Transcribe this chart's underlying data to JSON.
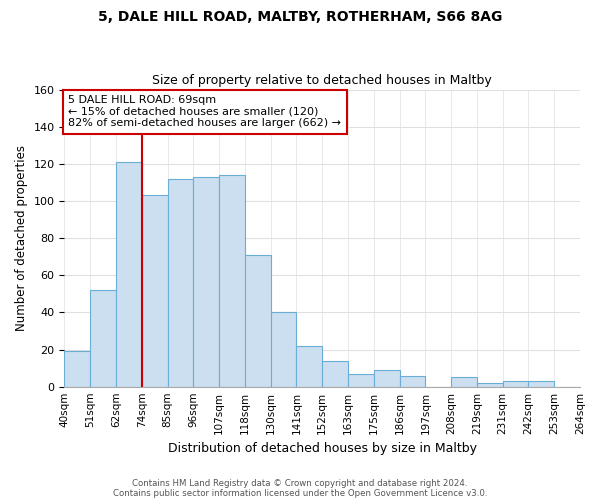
{
  "title1": "5, DALE HILL ROAD, MALTBY, ROTHERHAM, S66 8AG",
  "title2": "Size of property relative to detached houses in Maltby",
  "xlabel": "Distribution of detached houses by size in Maltby",
  "ylabel": "Number of detached properties",
  "bar_labels": [
    "40sqm",
    "51sqm",
    "62sqm",
    "74sqm",
    "85sqm",
    "96sqm",
    "107sqm",
    "118sqm",
    "130sqm",
    "141sqm",
    "152sqm",
    "163sqm",
    "175sqm",
    "186sqm",
    "197sqm",
    "208sqm",
    "219sqm",
    "231sqm",
    "242sqm",
    "253sqm",
    "264sqm"
  ],
  "bar_values": [
    19,
    52,
    121,
    103,
    112,
    113,
    114,
    71,
    40,
    22,
    14,
    7,
    9,
    6,
    0,
    5,
    2,
    3,
    3,
    0
  ],
  "bar_color": "#ccdff0",
  "bar_edge_color": "#6aadd5",
  "highlight_line_color": "#cc0000",
  "annotation_text": "5 DALE HILL ROAD: 69sqm\n← 15% of detached houses are smaller (120)\n82% of semi-detached houses are larger (662) →",
  "annotation_box_color": "#ffffff",
  "annotation_box_edge": "#cc0000",
  "ylim": [
    0,
    160
  ],
  "yticks": [
    0,
    20,
    40,
    60,
    80,
    100,
    120,
    140,
    160
  ],
  "footer1": "Contains HM Land Registry data © Crown copyright and database right 2024.",
  "footer2": "Contains public sector information licensed under the Open Government Licence v3.0.",
  "bg_color": "#ffffff",
  "plot_bg_color": "#ffffff",
  "grid_color": "#e0e0e0"
}
